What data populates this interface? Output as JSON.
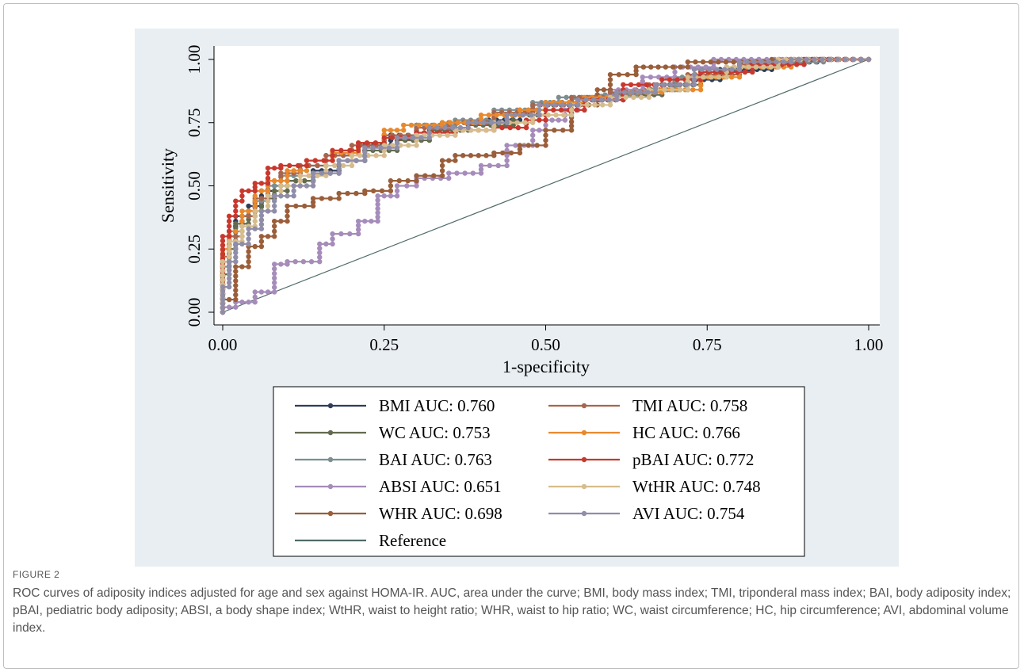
{
  "chart_data": {
    "type": "line",
    "xlabel": "1-specificity",
    "ylabel": "Sensitivity",
    "xlim": [
      0,
      1
    ],
    "ylim": [
      0,
      1
    ],
    "x_ticks": [
      "0.00",
      "0.25",
      "0.50",
      "0.75",
      "1.00"
    ],
    "y_ticks": [
      "0.00",
      "0.25",
      "0.50",
      "0.75",
      "1.00"
    ],
    "grid": false,
    "legend_position": "bottom",
    "background": "#e9eef2",
    "series": [
      {
        "name": "BMI AUC: 0.760",
        "color": "#2f3d58",
        "points": [
          [
            0,
            0
          ],
          [
            0.01,
            0.2
          ],
          [
            0.02,
            0.32
          ],
          [
            0.04,
            0.38
          ],
          [
            0.06,
            0.42
          ],
          [
            0.08,
            0.48
          ],
          [
            0.1,
            0.5
          ],
          [
            0.14,
            0.52
          ],
          [
            0.18,
            0.56
          ],
          [
            0.22,
            0.6
          ],
          [
            0.26,
            0.66
          ],
          [
            0.3,
            0.7
          ],
          [
            0.34,
            0.74
          ],
          [
            0.4,
            0.75
          ],
          [
            0.46,
            0.76
          ],
          [
            0.5,
            0.8
          ],
          [
            0.55,
            0.83
          ],
          [
            0.6,
            0.84
          ],
          [
            0.66,
            0.86
          ],
          [
            0.72,
            0.88
          ],
          [
            0.77,
            0.92
          ],
          [
            0.85,
            0.96
          ],
          [
            0.92,
            0.99
          ],
          [
            1,
            1
          ]
        ]
      },
      {
        "name": "WC AUC: 0.753",
        "color": "#636b4e",
        "points": [
          [
            0,
            0
          ],
          [
            0.01,
            0.15
          ],
          [
            0.02,
            0.25
          ],
          [
            0.04,
            0.35
          ],
          [
            0.06,
            0.4
          ],
          [
            0.08,
            0.45
          ],
          [
            0.1,
            0.48
          ],
          [
            0.14,
            0.52
          ],
          [
            0.18,
            0.55
          ],
          [
            0.22,
            0.6
          ],
          [
            0.27,
            0.64
          ],
          [
            0.32,
            0.68
          ],
          [
            0.38,
            0.72
          ],
          [
            0.45,
            0.74
          ],
          [
            0.5,
            0.78
          ],
          [
            0.56,
            0.82
          ],
          [
            0.62,
            0.84
          ],
          [
            0.68,
            0.86
          ],
          [
            0.74,
            0.9
          ],
          [
            0.82,
            0.95
          ],
          [
            0.9,
            0.98
          ],
          [
            1,
            1
          ]
        ]
      },
      {
        "name": "BAI AUC: 0.763",
        "color": "#7d8e91",
        "points": [
          [
            0,
            0
          ],
          [
            0.01,
            0.18
          ],
          [
            0.03,
            0.3
          ],
          [
            0.05,
            0.38
          ],
          [
            0.07,
            0.44
          ],
          [
            0.09,
            0.5
          ],
          [
            0.12,
            0.54
          ],
          [
            0.16,
            0.58
          ],
          [
            0.2,
            0.62
          ],
          [
            0.25,
            0.66
          ],
          [
            0.3,
            0.7
          ],
          [
            0.36,
            0.74
          ],
          [
            0.42,
            0.76
          ],
          [
            0.48,
            0.8
          ],
          [
            0.52,
            0.83
          ],
          [
            0.58,
            0.85
          ],
          [
            0.64,
            0.86
          ],
          [
            0.7,
            0.88
          ],
          [
            0.78,
            0.93
          ],
          [
            0.86,
            0.97
          ],
          [
            0.93,
            0.99
          ],
          [
            1,
            1
          ]
        ]
      },
      {
        "name": "ABSI AUC: 0.651",
        "color": "#a68cba",
        "points": [
          [
            0,
            0
          ],
          [
            0.02,
            0.02
          ],
          [
            0.05,
            0.04
          ],
          [
            0.08,
            0.08
          ],
          [
            0.1,
            0.19
          ],
          [
            0.15,
            0.2
          ],
          [
            0.17,
            0.27
          ],
          [
            0.21,
            0.31
          ],
          [
            0.24,
            0.36
          ],
          [
            0.27,
            0.46
          ],
          [
            0.3,
            0.5
          ],
          [
            0.35,
            0.53
          ],
          [
            0.4,
            0.55
          ],
          [
            0.44,
            0.58
          ],
          [
            0.48,
            0.66
          ],
          [
            0.5,
            0.72
          ],
          [
            0.53,
            0.76
          ],
          [
            0.56,
            0.8
          ],
          [
            0.6,
            0.84
          ],
          [
            0.65,
            0.88
          ],
          [
            0.7,
            0.93
          ],
          [
            0.76,
            0.97
          ],
          [
            0.83,
            1
          ],
          [
            1,
            1
          ]
        ]
      },
      {
        "name": "WHR AUC: 0.698",
        "color": "#9a5e3a",
        "points": [
          [
            0,
            0
          ],
          [
            0.02,
            0.05
          ],
          [
            0.04,
            0.18
          ],
          [
            0.06,
            0.26
          ],
          [
            0.08,
            0.3
          ],
          [
            0.1,
            0.36
          ],
          [
            0.14,
            0.42
          ],
          [
            0.18,
            0.45
          ],
          [
            0.22,
            0.47
          ],
          [
            0.26,
            0.48
          ],
          [
            0.3,
            0.52
          ],
          [
            0.34,
            0.54
          ],
          [
            0.36,
            0.6
          ],
          [
            0.42,
            0.62
          ],
          [
            0.46,
            0.63
          ],
          [
            0.5,
            0.66
          ],
          [
            0.54,
            0.72
          ],
          [
            0.58,
            0.82
          ],
          [
            0.6,
            0.88
          ],
          [
            0.64,
            0.94
          ],
          [
            0.72,
            0.97
          ],
          [
            0.85,
            0.99
          ],
          [
            1,
            1
          ]
        ]
      },
      {
        "name": "TMI AUC: 0.758",
        "color": "#a8654e",
        "points": [
          [
            0,
            0
          ],
          [
            0.01,
            0.22
          ],
          [
            0.03,
            0.3
          ],
          [
            0.05,
            0.38
          ],
          [
            0.07,
            0.45
          ],
          [
            0.09,
            0.52
          ],
          [
            0.12,
            0.55
          ],
          [
            0.16,
            0.58
          ],
          [
            0.2,
            0.62
          ],
          [
            0.25,
            0.66
          ],
          [
            0.3,
            0.7
          ],
          [
            0.35,
            0.73
          ],
          [
            0.42,
            0.75
          ],
          [
            0.48,
            0.79
          ],
          [
            0.54,
            0.82
          ],
          [
            0.6,
            0.85
          ],
          [
            0.66,
            0.87
          ],
          [
            0.72,
            0.9
          ],
          [
            0.8,
            0.94
          ],
          [
            0.88,
            0.98
          ],
          [
            1,
            1
          ]
        ]
      },
      {
        "name": "HC AUC: 0.766",
        "color": "#e8892e",
        "points": [
          [
            0,
            0
          ],
          [
            0.01,
            0.25
          ],
          [
            0.03,
            0.32
          ],
          [
            0.05,
            0.4
          ],
          [
            0.07,
            0.48
          ],
          [
            0.1,
            0.52
          ],
          [
            0.13,
            0.56
          ],
          [
            0.17,
            0.6
          ],
          [
            0.21,
            0.63
          ],
          [
            0.25,
            0.67
          ],
          [
            0.28,
            0.72
          ],
          [
            0.34,
            0.74
          ],
          [
            0.4,
            0.75
          ],
          [
            0.46,
            0.78
          ],
          [
            0.5,
            0.8
          ],
          [
            0.56,
            0.83
          ],
          [
            0.62,
            0.85
          ],
          [
            0.68,
            0.87
          ],
          [
            0.74,
            0.88
          ],
          [
            0.8,
            0.93
          ],
          [
            0.88,
            0.97
          ],
          [
            1,
            1
          ]
        ]
      },
      {
        "name": "pBAI AUC: 0.772",
        "color": "#c8382e",
        "points": [
          [
            0,
            0
          ],
          [
            0.01,
            0.3
          ],
          [
            0.02,
            0.38
          ],
          [
            0.03,
            0.44
          ],
          [
            0.05,
            0.48
          ],
          [
            0.07,
            0.51
          ],
          [
            0.09,
            0.57
          ],
          [
            0.13,
            0.58
          ],
          [
            0.17,
            0.6
          ],
          [
            0.21,
            0.64
          ],
          [
            0.25,
            0.67
          ],
          [
            0.3,
            0.69
          ],
          [
            0.36,
            0.71
          ],
          [
            0.42,
            0.72
          ],
          [
            0.47,
            0.73
          ],
          [
            0.5,
            0.76
          ],
          [
            0.56,
            0.8
          ],
          [
            0.62,
            0.84
          ],
          [
            0.68,
            0.9
          ],
          [
            0.74,
            0.92
          ],
          [
            0.82,
            0.95
          ],
          [
            0.9,
            0.98
          ],
          [
            1,
            1
          ]
        ]
      },
      {
        "name": "WtHR AUC: 0.748",
        "color": "#d7bc8c",
        "points": [
          [
            0,
            0
          ],
          [
            0.01,
            0.2
          ],
          [
            0.03,
            0.28
          ],
          [
            0.05,
            0.34
          ],
          [
            0.07,
            0.4
          ],
          [
            0.09,
            0.46
          ],
          [
            0.12,
            0.5
          ],
          [
            0.16,
            0.54
          ],
          [
            0.2,
            0.58
          ],
          [
            0.25,
            0.62
          ],
          [
            0.3,
            0.66
          ],
          [
            0.36,
            0.7
          ],
          [
            0.42,
            0.72
          ],
          [
            0.48,
            0.75
          ],
          [
            0.54,
            0.78
          ],
          [
            0.6,
            0.82
          ],
          [
            0.66,
            0.85
          ],
          [
            0.72,
            0.88
          ],
          [
            0.78,
            0.93
          ],
          [
            0.86,
            0.97
          ],
          [
            1,
            1
          ]
        ]
      },
      {
        "name": "AVI AUC: 0.754",
        "color": "#8f8da8",
        "points": [
          [
            0,
            0
          ],
          [
            0.01,
            0.1
          ],
          [
            0.02,
            0.2
          ],
          [
            0.04,
            0.27
          ],
          [
            0.06,
            0.33
          ],
          [
            0.08,
            0.4
          ],
          [
            0.11,
            0.46
          ],
          [
            0.14,
            0.5
          ],
          [
            0.18,
            0.55
          ],
          [
            0.22,
            0.6
          ],
          [
            0.27,
            0.65
          ],
          [
            0.32,
            0.69
          ],
          [
            0.38,
            0.73
          ],
          [
            0.44,
            0.75
          ],
          [
            0.49,
            0.78
          ],
          [
            0.55,
            0.82
          ],
          [
            0.61,
            0.84
          ],
          [
            0.67,
            0.87
          ],
          [
            0.73,
            0.9
          ],
          [
            0.8,
            0.96
          ],
          [
            0.88,
            0.99
          ],
          [
            1,
            1
          ]
        ]
      }
    ],
    "reference": {
      "name": "Reference",
      "color": "#4f6b6a",
      "points": [
        [
          0,
          0
        ],
        [
          1,
          1
        ]
      ]
    }
  },
  "caption": {
    "label": "FIGURE 2",
    "text": "ROC curves of adiposity indices adjusted for age and sex against HOMA-IR. AUC, area under the curve; BMI, body mass index; TMI, triponderal mass index; BAI, body adiposity index; pBAI, pediatric body adiposity; ABSI, a body shape index; WtHR, waist to height ratio; WHR, waist to hip ratio; WC, waist circumference; HC, hip circumference; AVI, abdominal volume index."
  }
}
